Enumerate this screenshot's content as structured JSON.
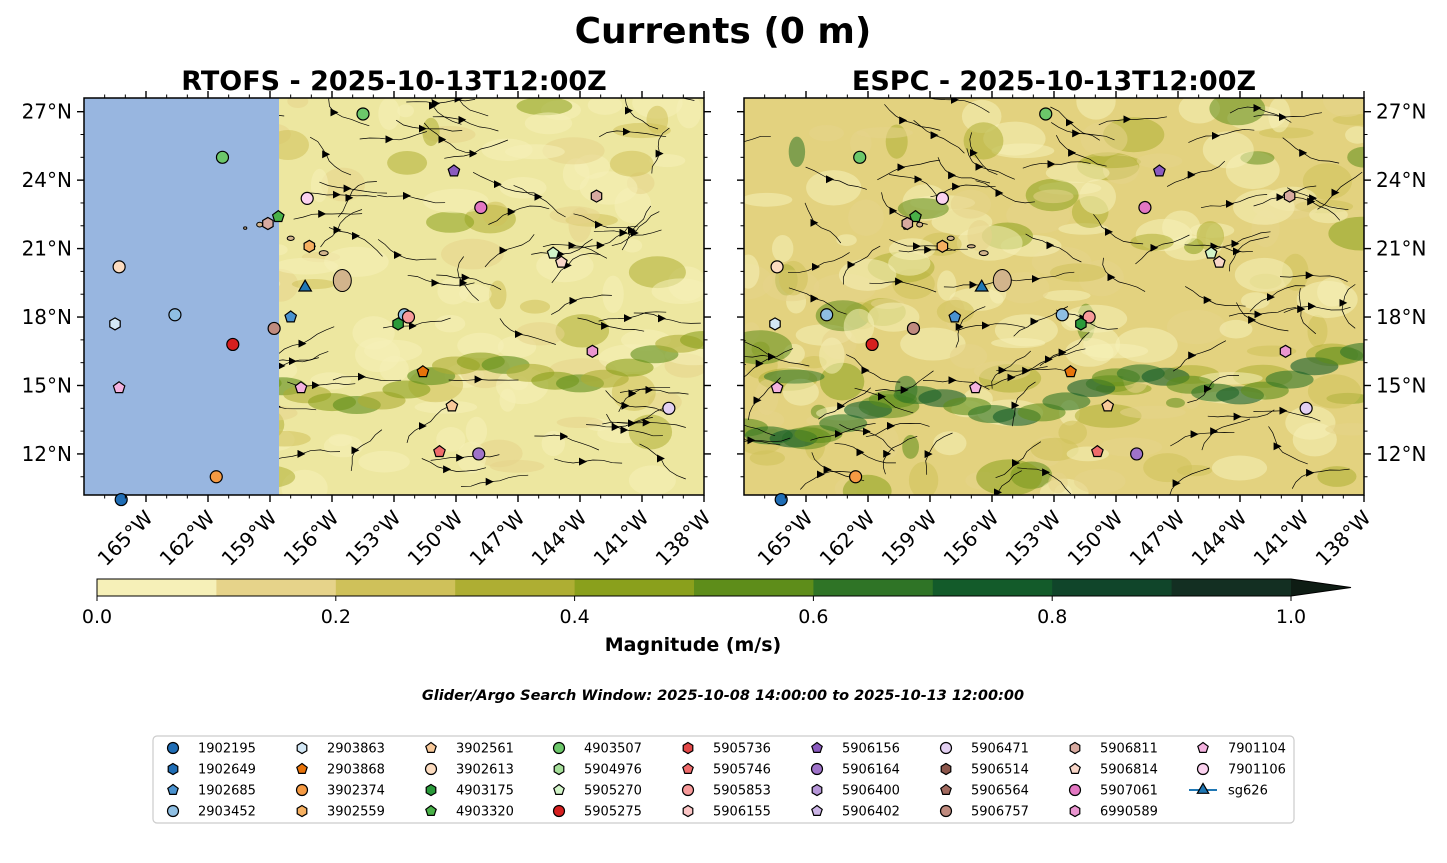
{
  "figure": {
    "suptitle": "Currents (0 m)",
    "search_window": "Glider/Argo Search Window: 2025-10-08 14:00:00 to 2025-10-13 12:00:00"
  },
  "chart_data": [
    {
      "type": "heatmap",
      "title": "RTOFS - 2025-10-13T12:00Z",
      "xlim": [
        -168,
        -138
      ],
      "ylim": [
        10.2,
        27.6
      ],
      "x_ticks": [
        "165°W",
        "162°W",
        "159°W",
        "156°W",
        "153°W",
        "150°W",
        "147°W",
        "144°W",
        "141°W",
        "138°W"
      ],
      "y_ticks": [
        "27°N",
        "24°N",
        "21°N",
        "18°N",
        "15°N",
        "12°N"
      ],
      "model_domain_west_edge_lon": -158.6,
      "platforms": [
        {
          "id": "1902195",
          "lon": -166.2,
          "lat": 10.0
        },
        {
          "id": "3902374",
          "lon": -161.6,
          "lat": 11.0
        },
        {
          "id": "5905275",
          "lon": -160.8,
          "lat": 16.8
        },
        {
          "id": "5906757",
          "lon": -158.8,
          "lat": 17.5
        },
        {
          "id": "2903452",
          "lon": -163.6,
          "lat": 18.1
        },
        {
          "id": "2903863",
          "lon": -166.5,
          "lat": 17.7
        },
        {
          "id": "3902613",
          "lon": -166.3,
          "lat": 20.2
        },
        {
          "id": "7901104",
          "lon": -166.3,
          "lat": 14.9
        },
        {
          "id": "4903507",
          "lon": -161.3,
          "lat": 25.0
        },
        {
          "id": "7901106",
          "lon": -157.2,
          "lat": 23.2
        },
        {
          "id": "4903320",
          "lon": -158.6,
          "lat": 22.4
        },
        {
          "id": "5906811",
          "lon": -159.1,
          "lat": 22.1
        },
        {
          "id": "3902559",
          "lon": -157.1,
          "lat": 21.1
        },
        {
          "id": "sg626",
          "lon": -157.3,
          "lat": 19.3
        },
        {
          "id": "1902685",
          "lon": -158.0,
          "lat": 18.0
        },
        {
          "id": "2903452",
          "lon": -152.5,
          "lat": 18.1
        },
        {
          "id": "5905853",
          "lon": -152.3,
          "lat": 18.0
        },
        {
          "id": "4903175",
          "lon": -152.8,
          "lat": 17.7
        },
        {
          "id": "2903868",
          "lon": -151.6,
          "lat": 15.6
        },
        {
          "id": "7901104",
          "lon": -157.5,
          "lat": 14.9
        },
        {
          "id": "3902561",
          "lon": -150.2,
          "lat": 14.1
        },
        {
          "id": "5905746",
          "lon": -150.8,
          "lat": 12.1
        },
        {
          "id": "5906164",
          "lon": -148.9,
          "lat": 12.0
        },
        {
          "id": "4903507",
          "lon": -154.5,
          "lat": 26.9
        },
        {
          "id": "5906156",
          "lon": -150.1,
          "lat": 24.4
        },
        {
          "id": "5907061",
          "lon": -148.8,
          "lat": 22.8
        },
        {
          "id": "5906811",
          "lon": -143.2,
          "lat": 23.3
        },
        {
          "id": "5905270",
          "lon": -145.3,
          "lat": 20.8
        },
        {
          "id": "5906814",
          "lon": -144.9,
          "lat": 20.4
        },
        {
          "id": "6990589",
          "lon": -143.4,
          "lat": 16.5
        },
        {
          "id": "5906471",
          "lon": -139.7,
          "lat": 14.0
        }
      ]
    },
    {
      "type": "heatmap",
      "title": "ESPC - 2025-10-13T12:00Z",
      "xlim": [
        -168,
        -138
      ],
      "ylim": [
        10.2,
        27.6
      ],
      "x_ticks": [
        "165°W",
        "162°W",
        "159°W",
        "156°W",
        "153°W",
        "150°W",
        "147°W",
        "144°W",
        "141°W",
        "138°W"
      ],
      "y_ticks": [
        "27°N",
        "24°N",
        "21°N",
        "18°N",
        "15°N",
        "12°N"
      ],
      "platforms": [
        {
          "id": "1902195",
          "lon": -166.2,
          "lat": 10.0
        },
        {
          "id": "3902374",
          "lon": -162.6,
          "lat": 11.0
        },
        {
          "id": "5905275",
          "lon": -161.8,
          "lat": 16.8
        },
        {
          "id": "5906757",
          "lon": -159.8,
          "lat": 17.5
        },
        {
          "id": "2903452",
          "lon": -164.0,
          "lat": 18.1
        },
        {
          "id": "2903863",
          "lon": -166.5,
          "lat": 17.7
        },
        {
          "id": "3902613",
          "lon": -166.4,
          "lat": 20.2
        },
        {
          "id": "7901104",
          "lon": -166.4,
          "lat": 14.9
        },
        {
          "id": "4903507",
          "lon": -162.4,
          "lat": 25.0
        },
        {
          "id": "7901106",
          "lon": -158.4,
          "lat": 23.2
        },
        {
          "id": "4903320",
          "lon": -159.7,
          "lat": 22.4
        },
        {
          "id": "5906811",
          "lon": -160.1,
          "lat": 22.1
        },
        {
          "id": "3902559",
          "lon": -158.4,
          "lat": 21.1
        },
        {
          "id": "sg626",
          "lon": -156.5,
          "lat": 19.3
        },
        {
          "id": "1902685",
          "lon": -157.8,
          "lat": 18.0
        },
        {
          "id": "2903452",
          "lon": -152.6,
          "lat": 18.1
        },
        {
          "id": "5905853",
          "lon": -151.3,
          "lat": 18.0
        },
        {
          "id": "4903175",
          "lon": -151.7,
          "lat": 17.7
        },
        {
          "id": "2903868",
          "lon": -152.2,
          "lat": 15.6
        },
        {
          "id": "7901104",
          "lon": -156.8,
          "lat": 14.9
        },
        {
          "id": "3902561",
          "lon": -150.4,
          "lat": 14.1
        },
        {
          "id": "5905746",
          "lon": -150.9,
          "lat": 12.1
        },
        {
          "id": "5906164",
          "lon": -149.0,
          "lat": 12.0
        },
        {
          "id": "4903507",
          "lon": -153.4,
          "lat": 26.9
        },
        {
          "id": "5906156",
          "lon": -147.9,
          "lat": 24.4
        },
        {
          "id": "5907061",
          "lon": -148.6,
          "lat": 22.8
        },
        {
          "id": "5906811",
          "lon": -141.6,
          "lat": 23.3
        },
        {
          "id": "5905270",
          "lon": -145.4,
          "lat": 20.8
        },
        {
          "id": "5906814",
          "lon": -145.0,
          "lat": 20.4
        },
        {
          "id": "6990589",
          "lon": -141.8,
          "lat": 16.5
        },
        {
          "id": "5906471",
          "lon": -140.8,
          "lat": 14.0
        }
      ]
    }
  ],
  "colorbar": {
    "label": "Magnitude (m/s)",
    "range": [
      0.0,
      1.0
    ],
    "extend": "max",
    "ticks": [
      "0.0",
      "0.2",
      "0.4",
      "0.6",
      "0.8",
      "1.0"
    ],
    "colors": [
      "#f6f0b8",
      "#e6d38a",
      "#cfc15a",
      "#aeae33",
      "#8aa01c",
      "#5e8d1a",
      "#2f7426",
      "#135b2a",
      "#10452a",
      "#132f22",
      "#0e1c14"
    ]
  },
  "legend": [
    {
      "id": "1902195",
      "marker": "circle",
      "color": "#1f6db5"
    },
    {
      "id": "1902649",
      "marker": "hexagon",
      "color": "#1f6db5"
    },
    {
      "id": "1902685",
      "marker": "pentagon",
      "color": "#4a92cf"
    },
    {
      "id": "2903452",
      "marker": "circle",
      "color": "#8fbfe3"
    },
    {
      "id": "2903863",
      "marker": "hexagon",
      "color": "#d3e8f6"
    },
    {
      "id": "2903868",
      "marker": "pentagon",
      "color": "#e8730a"
    },
    {
      "id": "3902374",
      "marker": "circle",
      "color": "#f59a43"
    },
    {
      "id": "3902559",
      "marker": "hexagon",
      "color": "#f6b061"
    },
    {
      "id": "3902561",
      "marker": "pentagon",
      "color": "#f8c99a"
    },
    {
      "id": "3902613",
      "marker": "circle",
      "color": "#fcdcc0"
    },
    {
      "id": "4903175",
      "marker": "hexagon",
      "color": "#2a9a3a"
    },
    {
      "id": "4903320",
      "marker": "pentagon",
      "color": "#49b148"
    },
    {
      "id": "4903507",
      "marker": "circle",
      "color": "#6cc76a"
    },
    {
      "id": "5904976",
      "marker": "hexagon",
      "color": "#a5df99"
    },
    {
      "id": "5905270",
      "marker": "pentagon",
      "color": "#d2f4c8"
    },
    {
      "id": "5905275",
      "marker": "circle",
      "color": "#d61f1f"
    },
    {
      "id": "5905736",
      "marker": "hexagon",
      "color": "#e34848"
    },
    {
      "id": "5905746",
      "marker": "pentagon",
      "color": "#ef6b6b"
    },
    {
      "id": "5905853",
      "marker": "circle",
      "color": "#f79a9a"
    },
    {
      "id": "5906155",
      "marker": "hexagon",
      "color": "#fcc6c6"
    },
    {
      "id": "5906156",
      "marker": "pentagon",
      "color": "#8b5bbf"
    },
    {
      "id": "5906164",
      "marker": "circle",
      "color": "#9f73c9"
    },
    {
      "id": "5906400",
      "marker": "hexagon",
      "color": "#b696d8"
    },
    {
      "id": "5906402",
      "marker": "pentagon",
      "color": "#ccb5e6"
    },
    {
      "id": "5906471",
      "marker": "circle",
      "color": "#e3d0f2"
    },
    {
      "id": "5906514",
      "marker": "hexagon",
      "color": "#8c564b"
    },
    {
      "id": "5906564",
      "marker": "pentagon",
      "color": "#a26a5f"
    },
    {
      "id": "5906757",
      "marker": "circle",
      "color": "#c08b7f"
    },
    {
      "id": "5906811",
      "marker": "hexagon",
      "color": "#d8aaa0"
    },
    {
      "id": "5906814",
      "marker": "pentagon",
      "color": "#f8d6c8"
    },
    {
      "id": "5907061",
      "marker": "circle",
      "color": "#e377c2"
    },
    {
      "id": "6990589",
      "marker": "hexagon",
      "color": "#ea95d0"
    },
    {
      "id": "7901104",
      "marker": "pentagon",
      "color": "#f4b2df"
    },
    {
      "id": "7901106",
      "marker": "circle",
      "color": "#fbd2ef"
    },
    {
      "id": "sg626",
      "marker": "triangle",
      "color": "#1f77b4"
    }
  ]
}
